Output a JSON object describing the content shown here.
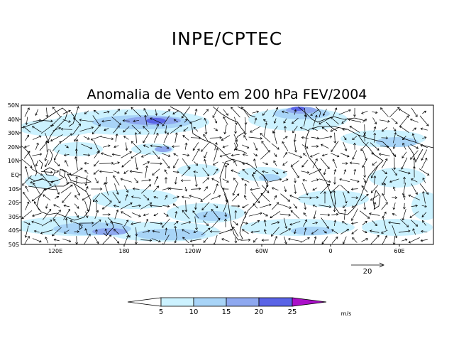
{
  "header": {
    "title": "INPE/CPTEC"
  },
  "map": {
    "title": "Anomalia de Vento em 200 hPa FEV/2004",
    "lat_labels": [
      "50N",
      "40N",
      "30N",
      "20N",
      "10N",
      "EQ",
      "10S",
      "20S",
      "30S",
      "40S",
      "50S"
    ],
    "lon_labels": [
      "120E",
      "180",
      "120W",
      "60W",
      "0",
      "60E"
    ]
  },
  "reference_vector": {
    "label": "20",
    "speed": 20
  },
  "colorbar": {
    "ticks": [
      "5",
      "10",
      "15",
      "20",
      "25"
    ],
    "unit": "m/s",
    "colors": [
      "#ffffff",
      "#ccf2ff",
      "#a8d4f7",
      "#8ea8ef",
      "#5a64e6",
      "#aa10c8"
    ]
  },
  "palette": {
    "coast": "#000000",
    "arrow": "#000000"
  }
}
